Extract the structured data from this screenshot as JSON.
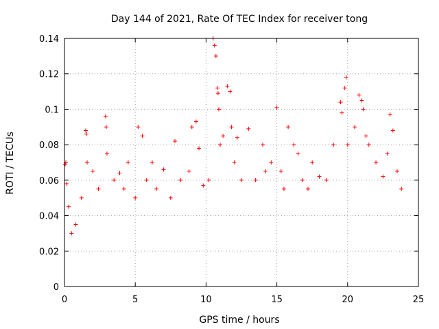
{
  "chart_data": {
    "type": "scatter",
    "title": "Day 144 of 2021, Rate Of TEC Index for receiver tong",
    "xlabel": "GPS time / hours",
    "ylabel": "ROTI / TECUs",
    "xlim": [
      0,
      25
    ],
    "ylim": [
      0,
      0.14
    ],
    "xticks": [
      "0",
      "5",
      "10",
      "15",
      "20",
      "25"
    ],
    "yticks": [
      "0",
      "0.02",
      "0.04",
      "0.06",
      "0.08",
      "0.1",
      "0.12",
      "0.14"
    ],
    "grid": true,
    "marker": "+",
    "color": "#ff0000",
    "series": [
      {
        "x": [
          0.05,
          0.1,
          0.15,
          0.3,
          0.5,
          0.8,
          1.2,
          1.5,
          1.55,
          1.6,
          2.0,
          2.4,
          2.9,
          2.95,
          3.0,
          3.5,
          3.9,
          4.2,
          4.5,
          5.0,
          5.2,
          5.5,
          5.8,
          6.2,
          6.5,
          7.0,
          7.5,
          7.8,
          8.2,
          8.8,
          9.0,
          9.3,
          9.5,
          9.8,
          10.2,
          10.5,
          10.6,
          10.7,
          10.8,
          10.85,
          10.9,
          11.0,
          11.2,
          11.5,
          11.7,
          11.8,
          12.0,
          12.2,
          12.5,
          13.0,
          13.5,
          14.0,
          14.2,
          14.6,
          15.0,
          15.3,
          15.5,
          15.8,
          16.2,
          16.5,
          16.8,
          17.2,
          17.5,
          18.0,
          18.5,
          19.0,
          19.5,
          19.6,
          19.8,
          19.9,
          20.0,
          20.5,
          20.8,
          21.0,
          21.1,
          21.3,
          21.5,
          22.0,
          22.5,
          22.8,
          23.0,
          23.2,
          23.5,
          23.8
        ],
        "y": [
          0.069,
          0.07,
          0.058,
          0.045,
          0.03,
          0.035,
          0.05,
          0.088,
          0.086,
          0.07,
          0.065,
          0.055,
          0.096,
          0.09,
          0.075,
          0.06,
          0.064,
          0.055,
          0.07,
          0.05,
          0.09,
          0.085,
          0.06,
          0.07,
          0.055,
          0.066,
          0.05,
          0.082,
          0.06,
          0.065,
          0.09,
          0.093,
          0.078,
          0.057,
          0.06,
          0.14,
          0.136,
          0.13,
          0.112,
          0.109,
          0.1,
          0.08,
          0.085,
          0.113,
          0.11,
          0.09,
          0.07,
          0.084,
          0.06,
          0.089,
          0.06,
          0.08,
          0.065,
          0.07,
          0.101,
          0.065,
          0.055,
          0.09,
          0.08,
          0.075,
          0.06,
          0.055,
          0.07,
          0.062,
          0.06,
          0.08,
          0.104,
          0.098,
          0.112,
          0.118,
          0.08,
          0.09,
          0.108,
          0.105,
          0.1,
          0.085,
          0.08,
          0.07,
          0.062,
          0.075,
          0.097,
          0.088,
          0.065,
          0.055
        ]
      }
    ]
  }
}
